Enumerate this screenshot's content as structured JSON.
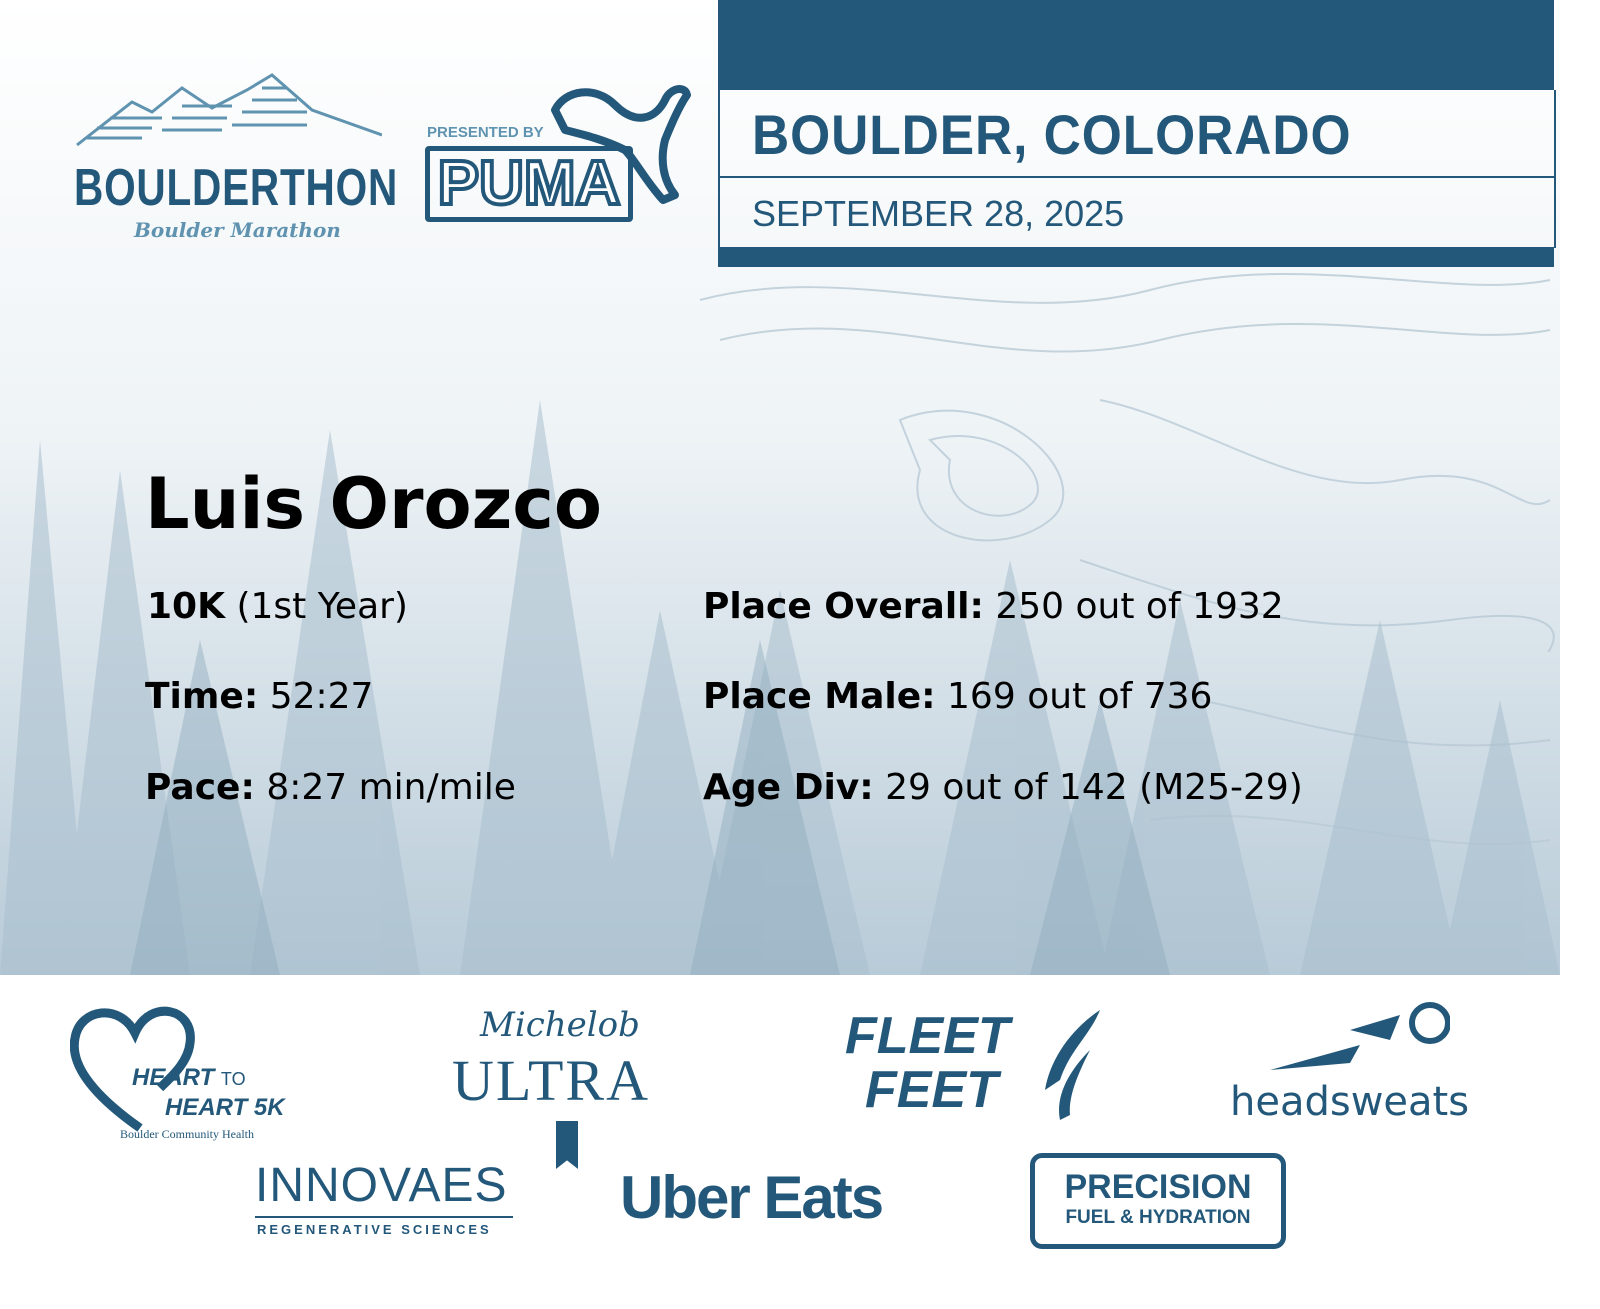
{
  "header": {
    "event_logo_text": "BOULDERTHON",
    "event_logo_subtitle": "Boulder Marathon",
    "presenter_prefix": "PRESENTED BY",
    "presenter_logo_text": "PUMA",
    "city": "BOULDER, COLORADO",
    "date": "SEPTEMBER 28, 2025"
  },
  "runner": {
    "name": "Luis Orozco",
    "race": "10K",
    "race_note": "(1st Year)",
    "time_label": "Time:",
    "time": "52:27",
    "pace_label": "Pace:",
    "pace": "8:27 min/mile",
    "place_overall_label": "Place Overall:",
    "place_overall": "250 out of 1932",
    "place_male_label": "Place Male:",
    "place_male": "169 out of 736",
    "age_div_label": "Age Div:",
    "age_div": "29 out of 142 (M25-29)"
  },
  "sponsors": {
    "heart_line1": "HEART",
    "heart_to": "TO",
    "heart_line2": "HEART 5K",
    "heart_org": "Boulder Community Health",
    "michelob_script": "Michelob",
    "michelob_ultra": "ULTRA",
    "fleet_feet_1": "FLEET",
    "fleet_feet_2": "FEET",
    "headsweats": "headsweats",
    "innovaes": "INNOVAES",
    "innovaes_sub": "REGENERATIVE SCIENCES",
    "uber_eats": "Uber Eats",
    "precision_1": "PRECISION",
    "precision_2": "FUEL & HYDRATION"
  },
  "colors": {
    "brand": "#23587a",
    "logo_light": "#5f93b0"
  }
}
